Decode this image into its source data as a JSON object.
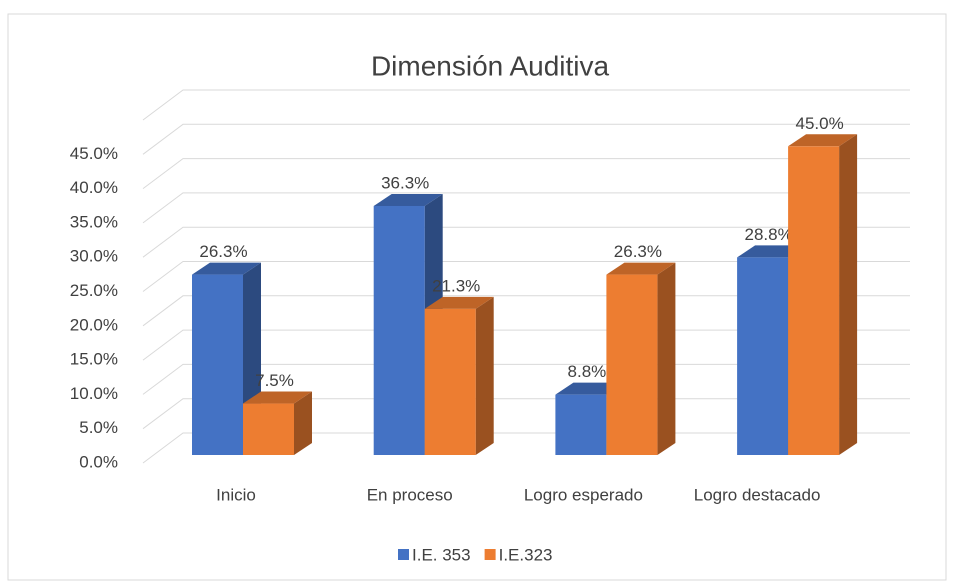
{
  "chart_data": {
    "type": "bar3d",
    "title": "Dimensión Auditiva",
    "categories": [
      "Inicio",
      "En proceso",
      "Logro esperado",
      "Logro destacado"
    ],
    "series": [
      {
        "name": "I.E. 353",
        "color": "#4472c4",
        "values": [
          26.3,
          36.3,
          8.8,
          28.8
        ],
        "value_labels": [
          "26.3%",
          "36.3%",
          "8.8%",
          "28.8%"
        ]
      },
      {
        "name": "I.E.323",
        "color": "#ed7d31",
        "values": [
          7.5,
          21.3,
          26.3,
          45.0
        ],
        "value_labels": [
          "7.5%",
          "21.3%",
          "26.3%",
          "45.0%"
        ]
      }
    ],
    "ylim": [
      0,
      50
    ],
    "yticks": [
      {
        "value": 0,
        "label": "0.0%"
      },
      {
        "value": 5,
        "label": "5.0%"
      },
      {
        "value": 10,
        "label": "10.0%"
      },
      {
        "value": 15,
        "label": "15.0%"
      },
      {
        "value": 20,
        "label": "20.0%"
      },
      {
        "value": 25,
        "label": "25.0%"
      },
      {
        "value": 30,
        "label": "30.0%"
      },
      {
        "value": 35,
        "label": "35.0%"
      },
      {
        "value": 40,
        "label": "40.0%"
      },
      {
        "value": 45,
        "label": "45.0%"
      }
    ],
    "grid": true,
    "legend": "bottom"
  }
}
